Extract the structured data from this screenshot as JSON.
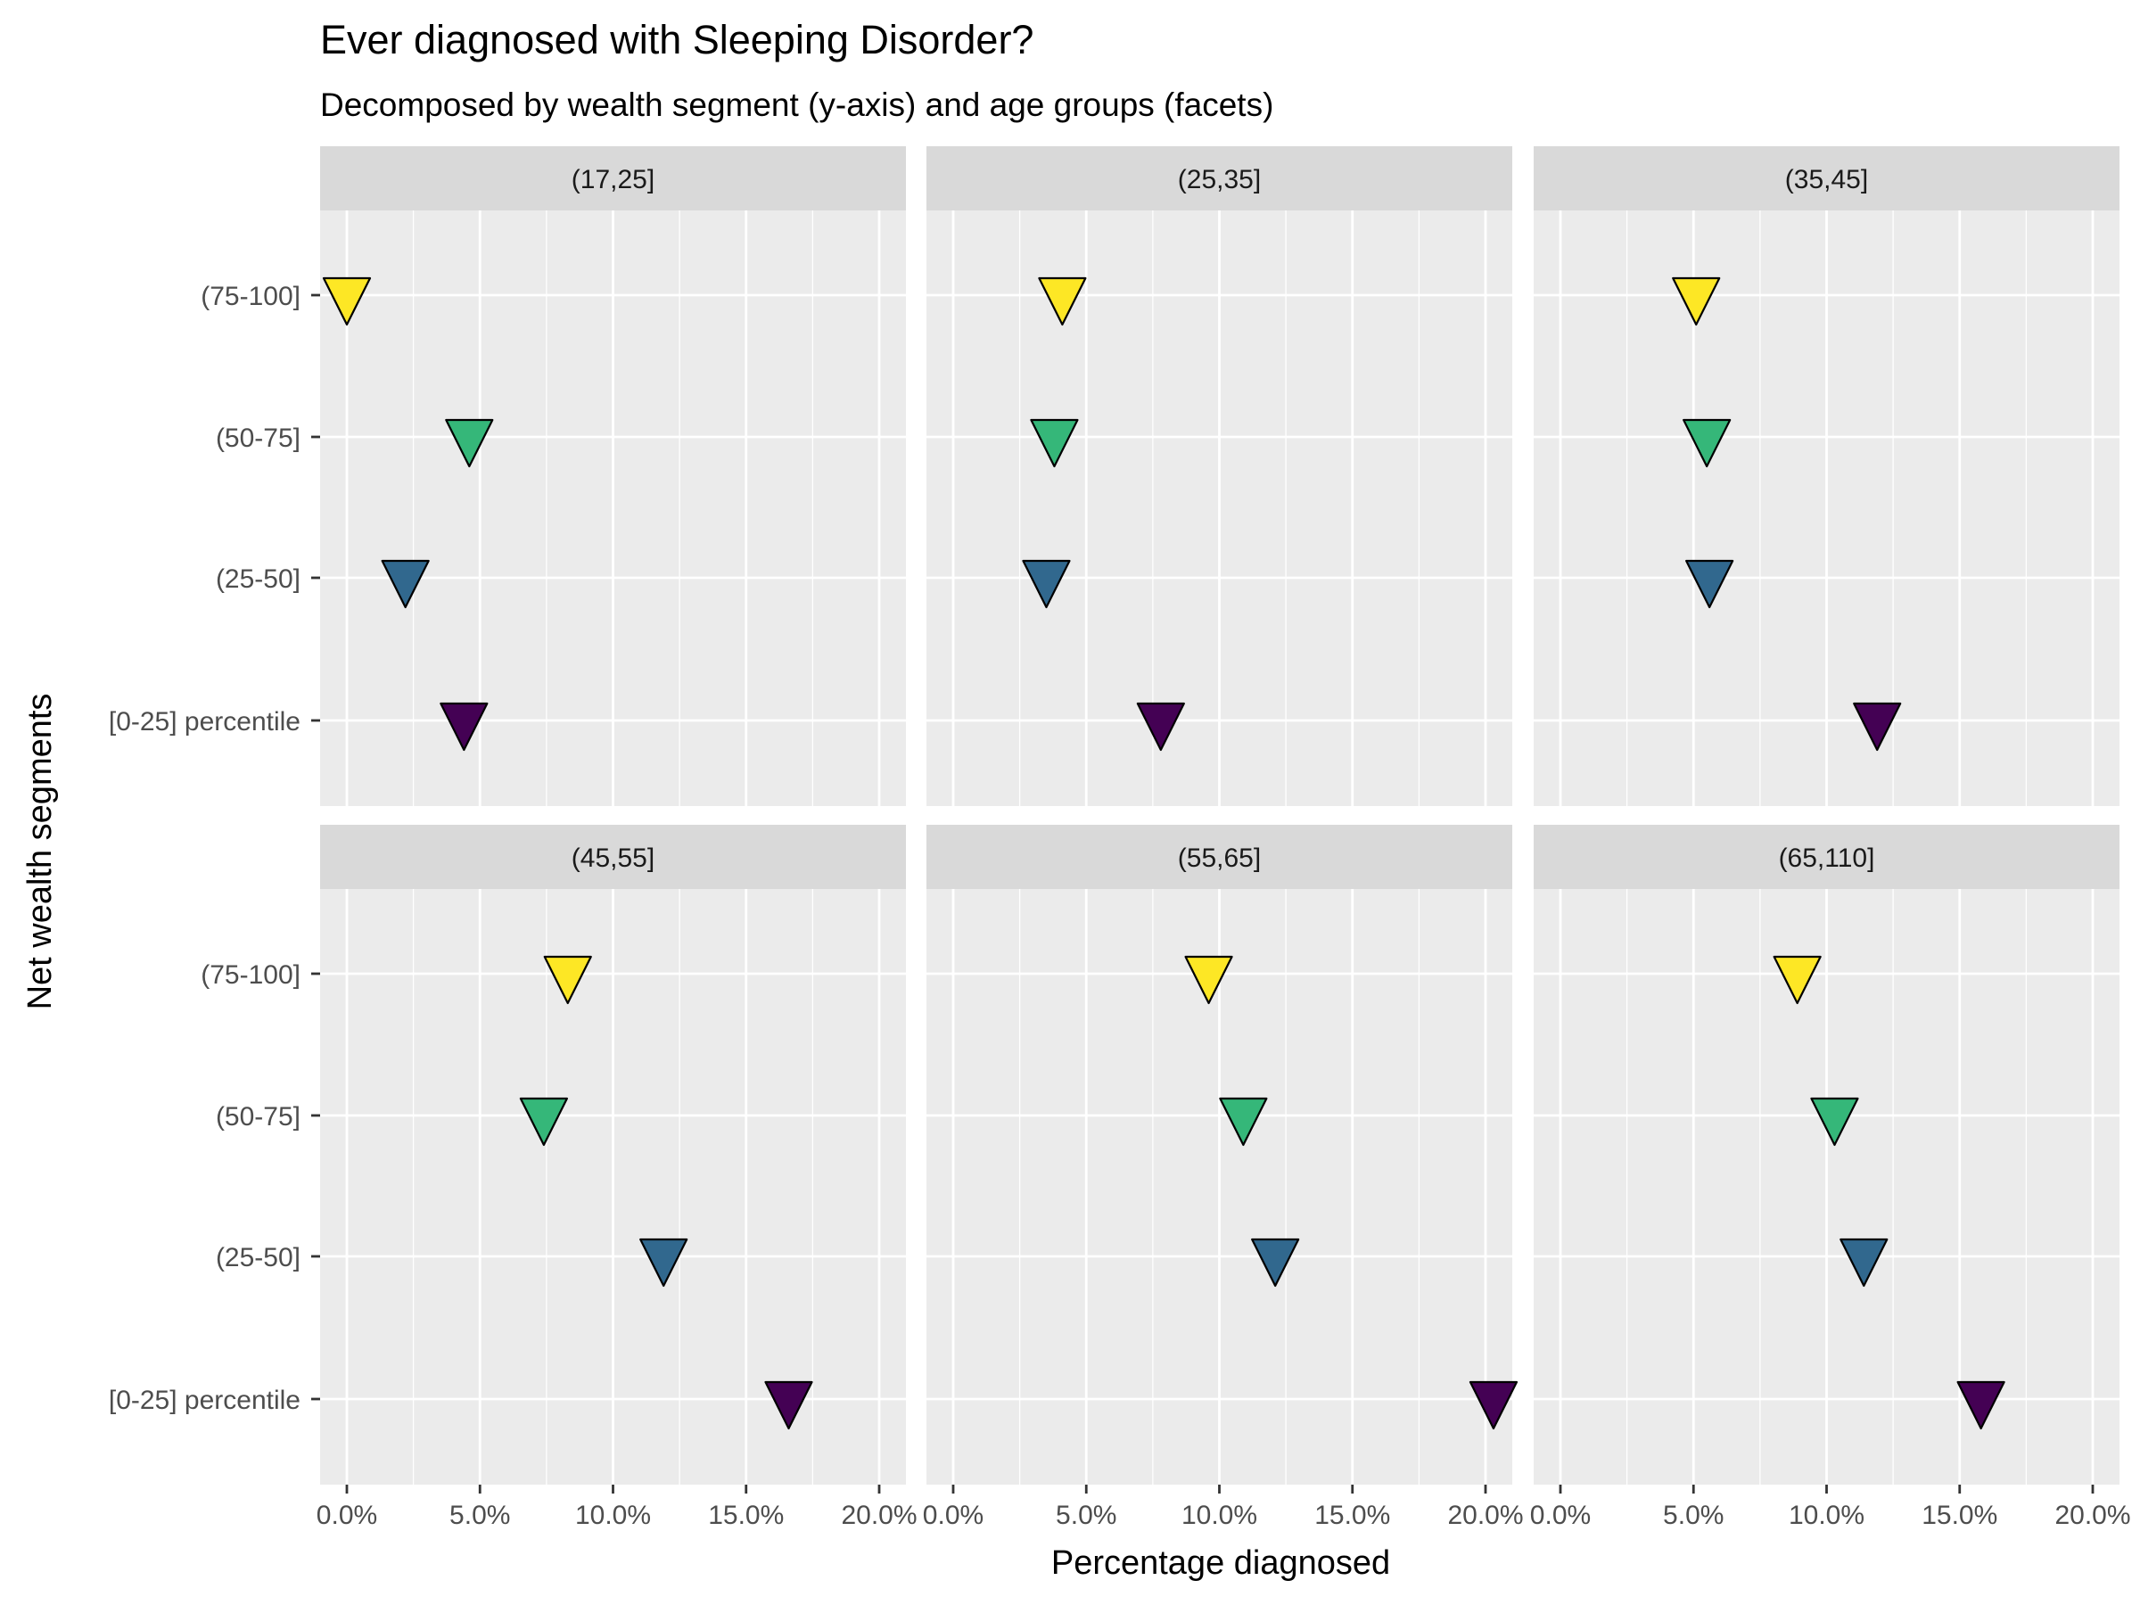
{
  "chart_data": {
    "type": "scatter",
    "title": "Ever diagnosed with Sleeping Disorder?",
    "subtitle": "Decomposed by wealth segment (y-axis) and age groups (facets)",
    "xlabel": "Percentage diagnosed",
    "ylabel": "Net wealth segments",
    "xlim": [
      0,
      0.2
    ],
    "x_ticks": [
      0,
      0.05,
      0.1,
      0.15,
      0.2
    ],
    "x_tick_labels": [
      "0.0%",
      "5.0%",
      "10.0%",
      "15.0%",
      "20.0%"
    ],
    "categories": [
      "[0-25] percentile",
      "(25-50]",
      "(50-75]",
      "(75-100]"
    ],
    "category_colors": [
      "#440154",
      "#31688e",
      "#35b779",
      "#fde725"
    ],
    "marker": "down-triangle",
    "grid": true,
    "legend": "none",
    "facets": [
      {
        "label": "(17,25]",
        "values": [
          0.044,
          0.022,
          0.046,
          0.0
        ]
      },
      {
        "label": "(25,35]",
        "values": [
          0.078,
          0.035,
          0.038,
          0.041
        ]
      },
      {
        "label": "(35,45]",
        "values": [
          0.119,
          0.056,
          0.055,
          0.051
        ]
      },
      {
        "label": "(45,55]",
        "values": [
          0.166,
          0.119,
          0.074,
          0.083
        ]
      },
      {
        "label": "(55,65]",
        "values": [
          0.203,
          0.121,
          0.109,
          0.096
        ]
      },
      {
        "label": "(65,110]",
        "values": [
          0.158,
          0.114,
          0.103,
          0.089
        ]
      }
    ]
  }
}
